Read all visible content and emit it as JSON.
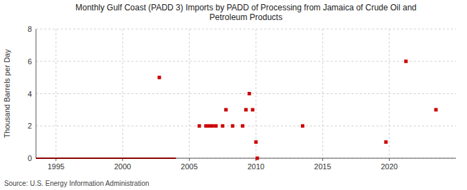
{
  "chart_data": {
    "type": "scatter",
    "title": "Monthly Gulf Coast (PADD 3) Imports by PADD of Processing from Jamaica of Crude Oil and\nPetroleum Products",
    "ylabel": "Thousand Barrels per Day",
    "source": "Source: U.S. Energy Information Administration",
    "xlim": [
      1993.5,
      2025
    ],
    "ylim": [
      0,
      8
    ],
    "xticks": [
      1995,
      2000,
      2005,
      2010,
      2015,
      2020
    ],
    "yticks": [
      0,
      2,
      4,
      6,
      8
    ],
    "grid": true,
    "series": [
      {
        "type": "line",
        "color": "#8b0000",
        "line_style": "solid",
        "x": [
          1993.5,
          2004.0
        ],
        "values": [
          0,
          0
        ]
      },
      {
        "type": "scatter",
        "color": "#cc0000",
        "marker": "square",
        "x": [
          2002.75,
          2005.75,
          2006.25,
          2006.5,
          2006.75,
          2007.0,
          2007.5,
          2007.75,
          2008.25,
          2009.0,
          2009.25,
          2009.5,
          2009.75,
          2010.0,
          2010.1,
          2013.5,
          2019.75,
          2021.25,
          2023.5
        ],
        "values": [
          5,
          2,
          2,
          2,
          2,
          2,
          2,
          3,
          2,
          2,
          3,
          4,
          3,
          1,
          0,
          2,
          1,
          6,
          3
        ]
      }
    ]
  }
}
